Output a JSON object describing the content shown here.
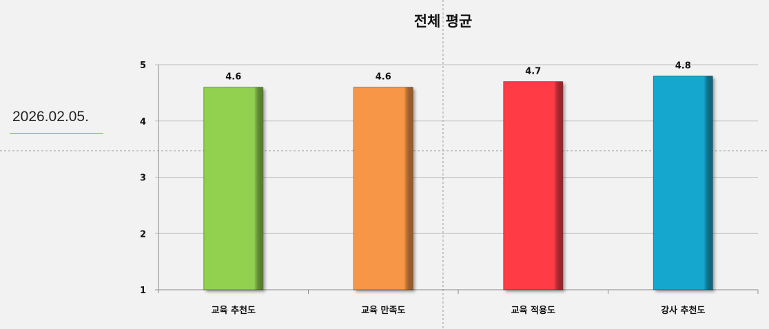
{
  "date_label": "2026.02.05.",
  "chart_data": {
    "type": "bar",
    "title": "전체 평균",
    "xlabel": "",
    "ylabel": "",
    "categories": [
      "교육 추천도",
      "교육 만족도",
      "교육 적용도",
      "강사 추천도"
    ],
    "values": [
      4.6,
      4.6,
      4.7,
      4.8
    ],
    "data_labels": [
      "4.6",
      "4.6",
      "4.7",
      "4.8"
    ],
    "colors": [
      "#92d050",
      "#f79646",
      "#ff3b46",
      "#16a7cf"
    ],
    "ylim": [
      1,
      5
    ],
    "yticks": [
      "1",
      "2",
      "3",
      "4",
      "5"
    ],
    "grid": true,
    "legend": "none"
  }
}
